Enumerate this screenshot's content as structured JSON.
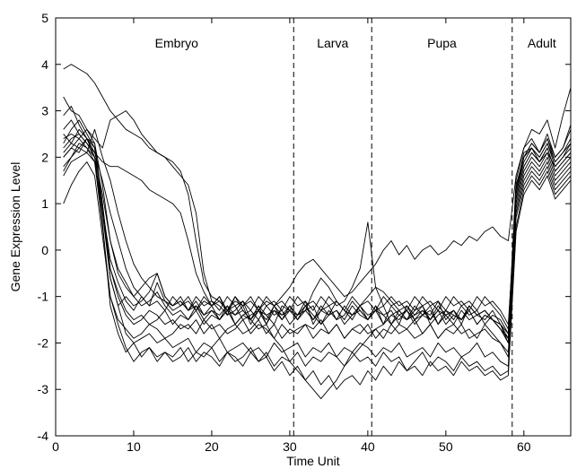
{
  "chart_data": {
    "type": "line",
    "title": "",
    "xlabel": "Time Unit",
    "ylabel": "Gene Expression Level",
    "xlim": [
      0,
      66
    ],
    "ylim": [
      -4,
      5
    ],
    "xticks": [
      0,
      10,
      20,
      30,
      40,
      50,
      60
    ],
    "yticks": [
      -4,
      -3,
      -2,
      -1,
      0,
      1,
      2,
      3,
      4,
      5
    ],
    "grid": false,
    "line_color": "#000000",
    "stage_boundaries": [
      30.5,
      40.5,
      58.5
    ],
    "stages": [
      {
        "label": "Embryo",
        "x": 15.5
      },
      {
        "label": "Larva",
        "x": 35.5
      },
      {
        "label": "Pupa",
        "x": 49.5
      },
      {
        "label": "Adult",
        "x": 62.3
      }
    ],
    "x": [
      1,
      2,
      3,
      4,
      5,
      6,
      7,
      8,
      9,
      10,
      11,
      12,
      13,
      14,
      15,
      16,
      17,
      18,
      19,
      20,
      21,
      22,
      23,
      24,
      25,
      26,
      27,
      28,
      29,
      30,
      31,
      32,
      33,
      34,
      35,
      36,
      37,
      38,
      39,
      40,
      41,
      42,
      43,
      44,
      45,
      46,
      47,
      48,
      49,
      50,
      51,
      52,
      53,
      54,
      55,
      56,
      57,
      58,
      59,
      60,
      61,
      62,
      63,
      64,
      65,
      66
    ],
    "series": [
      {
        "values": [
          3.9,
          4.0,
          3.9,
          3.8,
          3.6,
          3.3,
          3.0,
          2.8,
          2.6,
          2.5,
          2.4,
          2.2,
          2.1,
          2.0,
          1.9,
          1.7,
          1.2,
          0.2,
          -0.7,
          -1.0,
          -1.1,
          -1.3,
          -1.2,
          -1.5,
          -1.4,
          -1.3,
          -1.6,
          -1.2,
          -1.5,
          -1.3,
          -1.4,
          -1.1,
          -1.6,
          -1.3,
          -1.2,
          -1.5,
          -1.4,
          -1.1,
          -1.3,
          -1.5,
          -1.2,
          -1.4,
          -1.3,
          -1.6,
          -1.2,
          -1.5,
          -1.3,
          -1.4,
          -1.1,
          -1.5,
          -1.3,
          -1.6,
          -1.2,
          -1.4,
          -1.3,
          -1.5,
          -1.6,
          -1.8,
          1.5,
          2.2,
          2.6,
          2.5,
          2.8,
          2.2,
          2.9,
          3.5
        ]
      },
      {
        "values": [
          3.3,
          3.0,
          2.9,
          2.6,
          2.4,
          2.2,
          2.8,
          2.9,
          3.0,
          2.8,
          2.5,
          2.3,
          2.1,
          2.0,
          1.8,
          1.6,
          1.4,
          0.8,
          -0.5,
          -1.1,
          -1.2,
          -1.4,
          -1.0,
          -1.3,
          -1.5,
          -1.2,
          -1.6,
          -1.3,
          -1.4,
          -1.2,
          -1.5,
          -1.3,
          -1.2,
          -1.6,
          -1.4,
          -1.3,
          -1.5,
          -1.2,
          -1.4,
          -1.5,
          -1.3,
          -1.2,
          -1.6,
          -1.4,
          -1.3,
          -1.5,
          -1.4,
          -1.2,
          -1.6,
          -1.3,
          -1.4,
          -1.5,
          -1.3,
          -1.6,
          -1.4,
          -1.5,
          -1.7,
          -1.9,
          1.2,
          2.0,
          2.3,
          2.1,
          2.4,
          2.0,
          2.2,
          2.7
        ]
      },
      {
        "values": [
          2.9,
          3.1,
          2.7,
          2.4,
          2.1,
          1.9,
          1.8,
          1.8,
          1.7,
          1.6,
          1.5,
          1.3,
          1.2,
          1.1,
          1.0,
          0.8,
          0.2,
          -0.5,
          -0.9,
          -1.2,
          -1.0,
          -1.4,
          -1.3,
          -1.1,
          -1.5,
          -1.3,
          -1.4,
          -1.6,
          -1.2,
          -1.3,
          -1.4,
          -1.2,
          -1.5,
          -1.3,
          -1.4,
          -1.1,
          -1.3,
          -1.5,
          -1.2,
          -1.4,
          -1.3,
          -1.6,
          -1.2,
          -1.4,
          -1.5,
          -1.3,
          -1.2,
          -1.6,
          -1.4,
          -1.3,
          -1.5,
          -1.2,
          -1.4,
          -1.3,
          -1.6,
          -1.4,
          -1.5,
          -1.8,
          1.3,
          2.1,
          2.2,
          2.0,
          2.3,
          1.9,
          2.1,
          2.4
        ]
      },
      {
        "values": [
          2.5,
          2.3,
          2.2,
          2.1,
          2.6,
          2.0,
          1.5,
          0.8,
          0.2,
          -0.3,
          -0.6,
          -0.8,
          -1.0,
          -1.1,
          -1.2,
          -1.0,
          -1.3,
          -1.1,
          -1.4,
          -1.2,
          -1.5,
          -1.3,
          -1.4,
          -1.2,
          -1.6,
          -1.3,
          -1.5,
          -1.2,
          -1.4,
          -1.3,
          -1.5,
          -1.2,
          -1.4,
          -1.6,
          -1.3,
          -1.5,
          -1.2,
          -1.4,
          -1.3,
          -1.5,
          -1.2,
          -1.6,
          -1.4,
          -1.3,
          -1.5,
          -1.2,
          -1.4,
          -1.3,
          -1.6,
          -1.4,
          -1.3,
          -1.5,
          -1.2,
          -1.4,
          -1.5,
          -1.3,
          -1.6,
          -1.9,
          1.4,
          2.0,
          2.2,
          1.9,
          2.1,
          1.8,
          2.0,
          2.3
        ]
      },
      {
        "values": [
          2.2,
          2.4,
          2.5,
          2.3,
          2.0,
          1.2,
          0.2,
          -0.5,
          -0.8,
          -1.0,
          -0.8,
          -0.6,
          -0.5,
          -1.0,
          -1.2,
          -1.1,
          -1.3,
          -1.2,
          -1.5,
          -1.3,
          -1.4,
          -1.2,
          -1.6,
          -1.4,
          -1.3,
          -1.5,
          -1.2,
          -1.4,
          -1.3,
          -1.6,
          -1.4,
          -1.3,
          -1.5,
          -1.2,
          -1.4,
          -1.3,
          -1.6,
          -1.4,
          -1.2,
          -1.5,
          -1.3,
          -1.4,
          -1.6,
          -1.3,
          -1.5,
          -1.4,
          -1.2,
          -1.5,
          -1.3,
          -1.4,
          -1.6,
          -1.3,
          -1.5,
          -1.4,
          -1.3,
          -1.5,
          -1.6,
          -2.0,
          1.1,
          1.8,
          2.1,
          1.9,
          2.2,
          1.7,
          1.9,
          2.1
        ]
      },
      {
        "values": [
          2.0,
          2.2,
          2.1,
          2.4,
          2.3,
          1.0,
          -0.4,
          -1.0,
          -1.4,
          -1.6,
          -1.5,
          -1.3,
          -1.4,
          -1.6,
          -1.5,
          -1.7,
          -1.6,
          -1.8,
          -1.5,
          -1.7,
          -1.6,
          -1.8,
          -1.7,
          -1.5,
          -1.8,
          -1.6,
          -1.7,
          -1.9,
          -1.6,
          -1.8,
          -1.7,
          -1.6,
          -1.9,
          -1.7,
          -1.8,
          -1.6,
          -1.9,
          -1.7,
          -1.8,
          -1.6,
          -1.9,
          -1.7,
          -1.8,
          -1.6,
          -1.7,
          -1.9,
          -1.8,
          -1.6,
          -1.9,
          -1.7,
          -1.8,
          -1.6,
          -1.9,
          -1.8,
          -1.7,
          -1.9,
          -2.0,
          -2.2,
          0.9,
          1.6,
          1.9,
          1.7,
          2.0,
          1.5,
          1.7,
          1.9
        ]
      },
      {
        "values": [
          1.8,
          2.0,
          2.3,
          2.2,
          2.0,
          0.8,
          -0.6,
          -1.2,
          -1.8,
          -2.0,
          -1.9,
          -1.8,
          -2.0,
          -1.9,
          -2.1,
          -2.0,
          -1.9,
          -2.2,
          -2.0,
          -2.1,
          -1.9,
          -2.2,
          -2.1,
          -2.0,
          -2.2,
          -2.1,
          -2.3,
          -2.0,
          -2.2,
          -2.1,
          -2.0,
          -2.3,
          -2.1,
          -2.2,
          -2.0,
          -2.3,
          -2.1,
          -2.2,
          -2.0,
          -2.1,
          -2.3,
          -2.1,
          -2.2,
          -2.0,
          -2.3,
          -2.2,
          -2.1,
          -2.3,
          -2.0,
          -2.2,
          -2.1,
          -2.3,
          -2.2,
          -2.0,
          -2.3,
          -2.2,
          -2.4,
          -2.5,
          0.8,
          1.5,
          1.8,
          1.6,
          1.9,
          1.4,
          1.6,
          1.8
        ]
      },
      {
        "values": [
          1.6,
          1.9,
          2.0,
          2.1,
          1.9,
          0.5,
          -1.0,
          -1.5,
          -1.7,
          -1.9,
          -1.8,
          -1.6,
          -1.7,
          -1.9,
          -1.8,
          -1.6,
          -1.7,
          -1.5,
          -1.8,
          -1.6,
          -1.9,
          -1.7,
          -1.6,
          -1.8,
          -1.7,
          -1.5,
          -1.8,
          -1.6,
          -1.9,
          -1.7,
          -1.8,
          -1.6,
          -1.7,
          -1.5,
          -1.8,
          -1.6,
          -1.9,
          -1.7,
          -1.6,
          -1.8,
          -1.7,
          -1.9,
          -1.6,
          -1.8,
          -1.7,
          -1.5,
          -1.8,
          -1.6,
          -1.9,
          -1.7,
          -1.6,
          -1.8,
          -1.7,
          -1.9,
          -1.6,
          -1.8,
          -2.0,
          -2.3,
          0.7,
          1.4,
          1.7,
          1.5,
          1.8,
          1.3,
          1.5,
          1.7
        ]
      },
      {
        "values": [
          1.0,
          1.4,
          1.7,
          1.9,
          1.6,
          0.3,
          -1.0,
          -1.6,
          -2.1,
          -2.4,
          -2.2,
          -2.1,
          -2.3,
          -2.2,
          -2.4,
          -2.3,
          -2.1,
          -2.4,
          -2.2,
          -2.3,
          -2.5,
          -2.2,
          -2.4,
          -2.3,
          -2.1,
          -2.4,
          -2.2,
          -2.5,
          -2.3,
          -2.4,
          -2.2,
          -2.5,
          -2.3,
          -2.4,
          -2.2,
          -2.3,
          -2.5,
          -2.2,
          -2.4,
          -2.3,
          -2.5,
          -2.2,
          -2.4,
          -2.3,
          -2.6,
          -2.4,
          -2.2,
          -2.5,
          -2.3,
          -2.4,
          -2.6,
          -2.3,
          -2.5,
          -2.4,
          -2.6,
          -2.5,
          -2.7,
          -2.6,
          0.5,
          1.3,
          1.6,
          1.4,
          1.7,
          1.2,
          1.4,
          1.6
        ]
      },
      {
        "values": [
          2.3,
          2.6,
          2.8,
          2.5,
          2.2,
          1.0,
          -0.6,
          -1.2,
          -1.0,
          -1.2,
          -1.1,
          -0.9,
          -0.5,
          -1.0,
          -1.2,
          -1.1,
          -1.3,
          -1.0,
          -1.2,
          -1.1,
          -1.3,
          -1.0,
          -1.2,
          -1.1,
          -1.3,
          -1.0,
          -1.2,
          -1.1,
          -1.3,
          -1.0,
          -1.2,
          -1.1,
          -1.3,
          -1.0,
          -1.2,
          -1.1,
          -1.3,
          -1.0,
          -1.2,
          -1.1,
          -1.3,
          -1.0,
          -1.2,
          -1.1,
          -1.3,
          -1.0,
          -1.2,
          -1.1,
          -1.3,
          -1.0,
          -1.2,
          -1.1,
          -1.3,
          -1.0,
          -1.2,
          -1.1,
          -1.3,
          -1.6,
          1.0,
          1.7,
          2.0,
          1.8,
          2.1,
          1.6,
          1.8,
          2.0
        ]
      },
      {
        "values": [
          2.1,
          2.3,
          2.6,
          2.4,
          2.0,
          0.6,
          -1.2,
          -1.8,
          -2.2,
          -2.0,
          -2.3,
          -2.1,
          -2.4,
          -2.2,
          -2.3,
          -2.1,
          -2.4,
          -2.2,
          -2.3,
          -2.1,
          -2.4,
          -2.2,
          -2.3,
          -2.5,
          -2.2,
          -2.4,
          -2.3,
          -2.6,
          -2.4,
          -2.7,
          -2.5,
          -2.8,
          -2.6,
          -2.9,
          -2.7,
          -3.0,
          -2.8,
          -2.7,
          -2.9,
          -2.6,
          -2.8,
          -2.5,
          -2.7,
          -2.4,
          -2.6,
          -2.5,
          -2.7,
          -2.4,
          -2.6,
          -2.5,
          -2.7,
          -2.4,
          -2.6,
          -2.5,
          -2.7,
          -2.6,
          -2.8,
          -2.7,
          0.4,
          1.2,
          1.5,
          1.3,
          1.6,
          1.1,
          1.3,
          1.5
        ]
      },
      {
        "values": [
          2.4,
          2.5,
          2.4,
          2.2,
          1.9,
          0.9,
          -0.4,
          -0.9,
          -1.3,
          -1.5,
          -1.4,
          -1.6,
          -1.5,
          -1.3,
          -1.6,
          -1.4,
          -1.5,
          -1.3,
          -1.6,
          -1.4,
          -1.5,
          -1.3,
          -1.6,
          -1.4,
          -1.5,
          -1.7,
          -1.6,
          -1.9,
          -2.1,
          -2.4,
          -2.6,
          -2.8,
          -3.0,
          -3.2,
          -3.0,
          -2.8,
          -2.5,
          -2.3,
          -2.1,
          -1.9,
          -1.7,
          -1.6,
          -1.4,
          -1.5,
          -1.3,
          -1.6,
          -1.4,
          -1.5,
          -1.3,
          -1.6,
          -1.4,
          -1.5,
          -1.3,
          -1.6,
          -1.4,
          -1.5,
          -1.7,
          -2.0,
          1.2,
          1.9,
          2.2,
          2.0,
          2.3,
          1.8,
          2.0,
          2.2
        ]
      },
      {
        "values": [
          2.6,
          2.8,
          2.5,
          2.3,
          2.1,
          1.5,
          0.8,
          0.2,
          -0.4,
          -0.8,
          -1.0,
          -1.2,
          -0.7,
          -1.1,
          -1.3,
          -1.2,
          -1.0,
          -1.3,
          -1.1,
          -1.2,
          -1.0,
          -1.3,
          -1.1,
          -1.2,
          -1.0,
          -1.3,
          -1.1,
          -1.2,
          -1.0,
          -0.8,
          -0.5,
          -0.3,
          -0.2,
          -0.4,
          -0.6,
          -0.8,
          -1.0,
          -0.9,
          -0.7,
          -0.5,
          -0.3,
          0.0,
          0.2,
          -0.1,
          0.1,
          -0.2,
          0.0,
          0.1,
          -0.1,
          0.0,
          0.2,
          0.1,
          0.3,
          0.2,
          0.4,
          0.5,
          0.3,
          0.2,
          1.6,
          2.2,
          2.4,
          2.1,
          2.5,
          2.0,
          2.2,
          2.6
        ]
      },
      {
        "values": [
          2.0,
          2.2,
          2.4,
          2.6,
          2.3,
          1.4,
          0.2,
          -0.4,
          -0.7,
          -1.0,
          -1.2,
          -1.1,
          -0.9,
          -1.2,
          -1.4,
          -1.3,
          -1.5,
          -1.2,
          -1.4,
          -1.3,
          -1.5,
          -1.2,
          -1.4,
          -1.3,
          -1.5,
          -1.2,
          -1.4,
          -1.3,
          -1.5,
          -1.2,
          -1.4,
          -1.3,
          -0.9,
          -0.6,
          -0.8,
          -1.1,
          -1.3,
          -1.4,
          -1.2,
          -1.0,
          -0.8,
          -0.9,
          -1.1,
          -1.3,
          -1.2,
          -1.4,
          -1.3,
          -1.5,
          -1.2,
          -1.4,
          -1.3,
          -1.5,
          -1.2,
          -1.4,
          -1.3,
          -1.5,
          -1.7,
          -1.9,
          1.3,
          2.0,
          2.3,
          2.1,
          2.4,
          1.9,
          2.1,
          2.3
        ]
      },
      {
        "values": [
          1.7,
          2.0,
          2.2,
          2.4,
          2.2,
          0.9,
          -0.2,
          -0.7,
          -1.1,
          -1.3,
          -1.0,
          -1.2,
          -1.1,
          -1.3,
          -1.0,
          -1.2,
          -1.1,
          -1.3,
          -1.0,
          -1.2,
          -1.1,
          -1.3,
          -1.0,
          -1.2,
          -1.1,
          -1.3,
          -1.0,
          -1.2,
          -1.1,
          -1.3,
          -1.0,
          -1.2,
          -1.1,
          -1.3,
          -1.0,
          -1.2,
          -1.1,
          -0.8,
          -0.4,
          0.6,
          -0.8,
          -1.2,
          -1.0,
          -1.2,
          -1.1,
          -1.3,
          -1.0,
          -1.2,
          -1.1,
          -1.3,
          -1.0,
          -1.2,
          -1.1,
          -1.3,
          -1.0,
          -1.2,
          -1.4,
          -1.7,
          1.1,
          1.8,
          2.1,
          1.9,
          2.2,
          1.7,
          1.9,
          2.1
        ]
      }
    ]
  }
}
